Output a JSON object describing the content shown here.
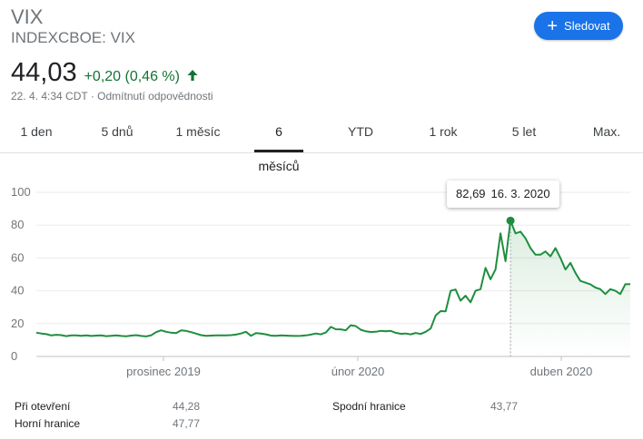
{
  "header": {
    "symbol": "VIX",
    "exchange": "INDEXCBOE: VIX",
    "price": "44,03",
    "change": "+0,20 (0,46 %)",
    "timestamp": "22. 4. 4:34 CDT · Odmítnutí odpovědnosti",
    "follow_label": "Sledovat",
    "accent_color": "#1a73e8",
    "positive_color": "#137333",
    "arrow_icon": "arrow-up-icon",
    "plus_icon": "plus-icon"
  },
  "tabs": [
    {
      "label": "1 den",
      "active": false
    },
    {
      "label": "5 dnů",
      "active": false
    },
    {
      "label": "1 měsíc",
      "active": false
    },
    {
      "label": "6 měsíců",
      "active": true
    },
    {
      "label": "YTD",
      "active": false
    },
    {
      "label": "1 rok",
      "active": false
    },
    {
      "label": "5 let",
      "active": false
    },
    {
      "label": "Max.",
      "active": false
    }
  ],
  "tooltip": {
    "value": "82,69",
    "date": "16. 3. 2020"
  },
  "stats": {
    "open_label": "Při otevření",
    "open_value": "44,28",
    "high_label": "Horní hranice",
    "high_value": "47,77",
    "low_label": "Spodní hranice",
    "low_value": "43,77"
  },
  "chart_data": {
    "type": "line",
    "line_color": "#1e8e3e",
    "y_ticks": [
      "0",
      "20",
      "40",
      "60",
      "80",
      "100"
    ],
    "ylim": [
      0,
      100
    ],
    "x_tick_labels": [
      "prosinec 2019",
      "únor 2020",
      "duben 2020"
    ],
    "grid": true,
    "highlight": {
      "date": "16. 3. 2020",
      "value": 82.69
    },
    "series": [
      {
        "values": [
          14.5,
          14.0,
          13.6,
          12.8,
          13.2,
          13.0,
          12.4,
          12.8,
          12.9,
          12.6,
          12.9,
          12.5,
          12.7,
          12.8,
          12.4,
          12.6,
          12.8,
          12.5,
          12.3,
          12.7,
          13.0,
          12.5,
          12.2,
          12.9,
          14.8,
          15.9,
          15.0,
          14.5,
          14.2,
          15.9,
          15.6,
          14.8,
          13.9,
          13.0,
          12.6,
          12.7,
          12.9,
          12.9,
          12.8,
          13.0,
          13.3,
          14.0,
          15.0,
          12.6,
          14.2,
          13.9,
          13.5,
          12.7,
          12.6,
          12.8,
          12.7,
          12.6,
          12.5,
          12.6,
          12.8,
          13.3,
          14.0,
          13.5,
          14.6,
          18.0,
          16.6,
          16.5,
          15.9,
          19.0,
          18.5,
          16.3,
          15.3,
          14.9,
          15.0,
          15.6,
          15.3,
          15.6,
          14.4,
          13.8,
          14.0,
          13.5,
          14.3,
          13.7,
          15.0,
          17.0,
          25.0,
          27.6,
          27.5,
          40.0,
          40.8,
          34.0,
          37.0,
          33.0,
          40.0,
          41.0,
          54.0,
          47.0,
          53.0,
          75.0,
          58.0,
          82.69,
          75.0,
          76.0,
          72.0,
          66.0,
          62.0,
          62.0,
          64.0,
          61.0,
          66.0,
          60.0,
          53.0,
          57.0,
          51.0,
          46.0,
          45.0,
          44.0,
          42.0,
          41.0,
          38.0,
          41.0,
          40.0,
          38.0,
          44.0,
          44.03
        ]
      }
    ]
  }
}
